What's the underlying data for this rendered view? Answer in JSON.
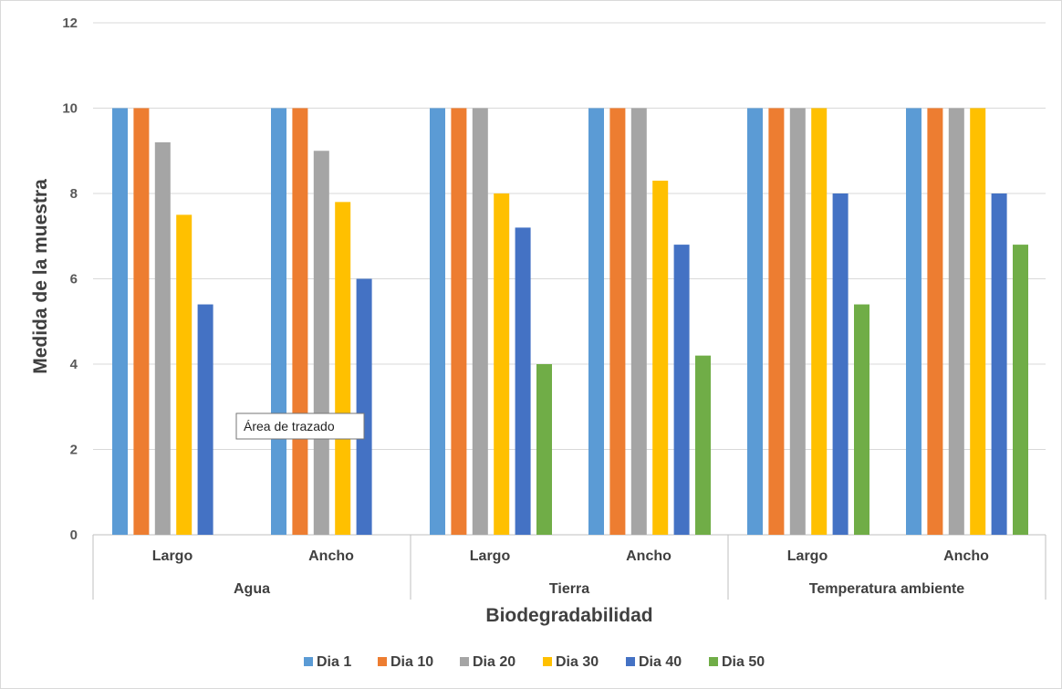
{
  "chart_data": {
    "type": "bar",
    "title": "",
    "xlabel": "Biodegradabilidad",
    "ylabel": "Medida de la muestra",
    "ylim": [
      0,
      12
    ],
    "yticks": [
      0,
      2,
      4,
      6,
      8,
      10,
      12
    ],
    "grid": true,
    "legend_position": "bottom",
    "groups": [
      {
        "label": "Agua",
        "categories": [
          "Largo",
          "Ancho"
        ]
      },
      {
        "label": "Tierra",
        "categories": [
          "Largo",
          "Ancho"
        ]
      },
      {
        "label": "Temperatura ambiente",
        "categories": [
          "Largo",
          "Ancho"
        ]
      }
    ],
    "series": [
      {
        "name": "Dia 1",
        "color": "#5b9bd5",
        "values": [
          10,
          10,
          10,
          10,
          10,
          10
        ]
      },
      {
        "name": "Dia 10",
        "color": "#ed7d31",
        "values": [
          10,
          10,
          10,
          10,
          10,
          10
        ]
      },
      {
        "name": "Dia 20",
        "color": "#a5a5a5",
        "values": [
          9.2,
          9,
          10,
          10,
          10,
          10
        ]
      },
      {
        "name": "Dia 30",
        "color": "#ffc000",
        "values": [
          7.5,
          7.8,
          8,
          8.3,
          10,
          10
        ]
      },
      {
        "name": "Dia 40",
        "color": "#4472c4",
        "values": [
          5.4,
          6,
          7.2,
          6.8,
          8,
          8
        ]
      },
      {
        "name": "Dia 50",
        "color": "#70ad47",
        "values": [
          0,
          0,
          4,
          4.2,
          5.4,
          6.8
        ]
      }
    ]
  },
  "tooltip": {
    "text": "Área de trazado"
  }
}
